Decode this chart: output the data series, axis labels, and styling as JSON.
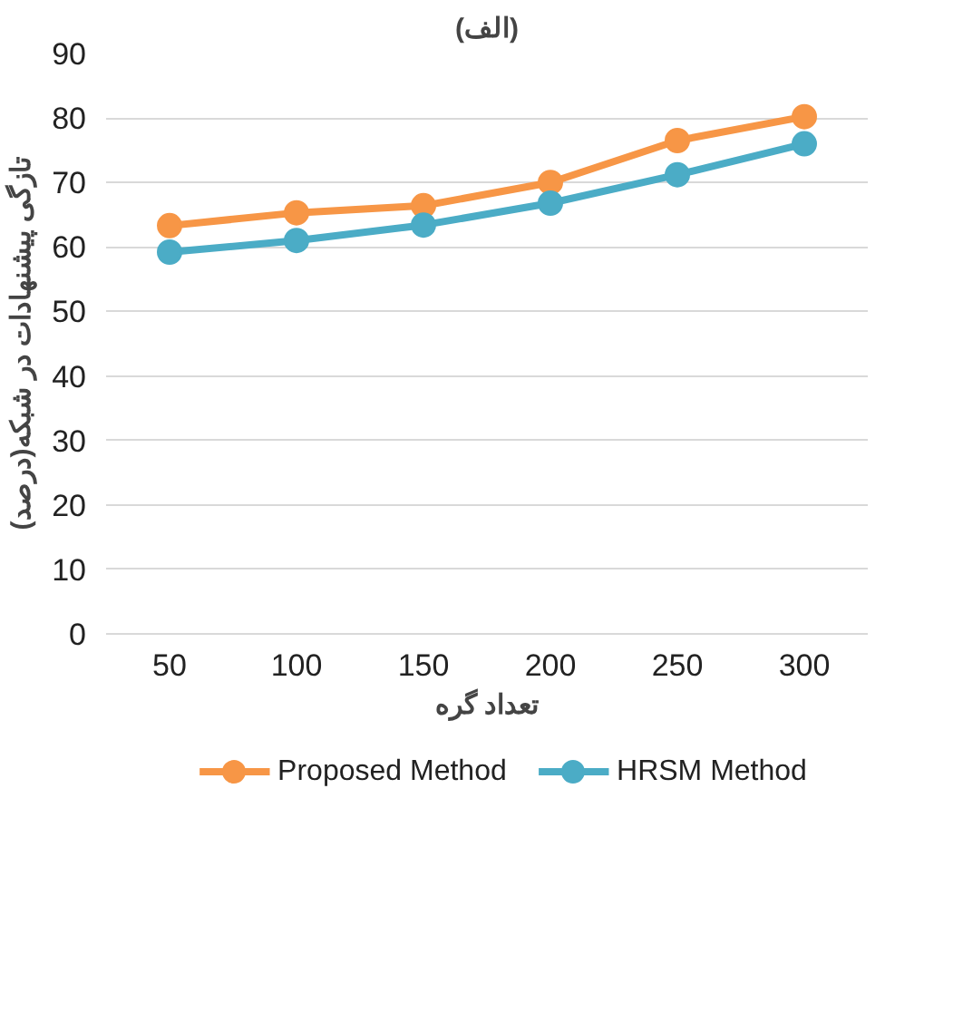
{
  "chart_data": {
    "type": "line",
    "title": "(الف)",
    "xlabel": "تعداد گره",
    "ylabel": "تازگی پیشنهادات در شبکه(درصد)",
    "categories": [
      "50",
      "100",
      "150",
      "200",
      "250",
      "300"
    ],
    "series": [
      {
        "name": "Proposed Method",
        "color": "#f79646",
        "values": [
          63.3,
          65.3,
          66.4,
          70,
          76.5,
          80.2
        ]
      },
      {
        "name": "HRSM Method",
        "color": "#4bacc6",
        "values": [
          59.2,
          61,
          63.4,
          66.8,
          71.2,
          76
        ]
      }
    ],
    "ylim": [
      0,
      90
    ],
    "yticks": [
      0,
      10,
      20,
      30,
      40,
      50,
      60,
      70,
      80,
      90
    ],
    "grid": "y",
    "legend": "bottom",
    "marker": "circle",
    "line_style": "solid"
  }
}
